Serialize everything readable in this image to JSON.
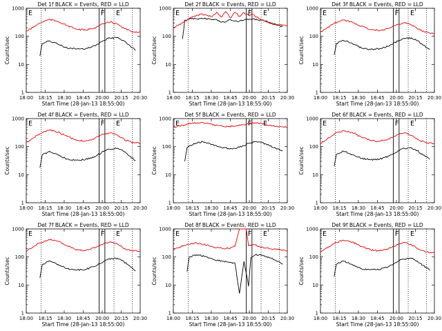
{
  "figure": {
    "title_suffix": "BLACK = Events, RED = LLD",
    "xlabel": "Start Time (28-Jan-13 18:55:00)",
    "ylabel": "Counts/sec",
    "x_ticks": [
      "18:00",
      "18:15",
      "18:30",
      "18:45",
      "20:00",
      "20:15",
      "20:30"
    ],
    "y_ticks": [
      "1",
      "10",
      "100",
      "1000"
    ],
    "flag_labels": [
      "E",
      "F",
      "E"
    ],
    "colors": {
      "events": "#000000",
      "lld": "#e00000"
    }
  },
  "chart_data": [
    {
      "type": "line",
      "detector": "Det 1f",
      "title": "Det 1f BLACK = Events, RED = LLD",
      "ylim": [
        1,
        1000
      ],
      "log_y": true,
      "series": [
        {
          "name": "Events",
          "color": "#000000",
          "x": [
            0.12,
            0.14,
            0.2,
            0.28,
            0.36,
            0.44,
            0.52,
            0.6,
            0.68,
            0.72,
            0.8,
            0.85,
            0.9,
            0.96
          ],
          "values": [
            20,
            55,
            70,
            52,
            38,
            35,
            36,
            46,
            70,
            85,
            90,
            72,
            50,
            32
          ]
        },
        {
          "name": "LLD",
          "color": "#e00000",
          "x": [
            0.0,
            0.06,
            0.12,
            0.2,
            0.28,
            0.36,
            0.44,
            0.52,
            0.6,
            0.68,
            0.74,
            0.8,
            0.86,
            0.92,
            1.0
          ],
          "values": [
            150,
            210,
            300,
            400,
            340,
            240,
            180,
            165,
            200,
            280,
            330,
            270,
            190,
            150,
            140
          ]
        }
      ]
    },
    {
      "type": "line",
      "detector": "Det 2f",
      "title": "Det 2f BLACK = Events, RED = LLD",
      "ylim": [
        1,
        1000
      ],
      "log_y": true,
      "series": [
        {
          "name": "Events",
          "color": "#000000",
          "x": [
            0.08,
            0.1,
            0.16,
            0.24,
            0.32,
            0.38,
            0.42,
            0.46,
            0.5,
            0.56,
            0.62,
            0.7,
            0.8,
            0.9,
            0.96
          ],
          "values": [
            80,
            380,
            420,
            430,
            410,
            400,
            320,
            330,
            400,
            340,
            380,
            420,
            350,
            260,
            220
          ]
        },
        {
          "name": "LLD",
          "color": "#e00000",
          "x": [
            0.0,
            0.08,
            0.16,
            0.24,
            0.3,
            0.34,
            0.38,
            0.42,
            0.46,
            0.5,
            0.54,
            0.58,
            0.62,
            0.66,
            0.7,
            0.76,
            0.84,
            0.9,
            1.0
          ],
          "values": [
            200,
            300,
            480,
            620,
            560,
            500,
            720,
            480,
            760,
            450,
            720,
            520,
            700,
            560,
            600,
            420,
            300,
            260,
            240
          ]
        }
      ]
    },
    {
      "type": "line",
      "detector": "Det 3f",
      "title": "Det 3f BLACK = Events, RED = LLD",
      "ylim": [
        1,
        1000
      ],
      "log_y": true,
      "series": [
        {
          "name": "Events",
          "color": "#000000",
          "x": [
            0.12,
            0.14,
            0.2,
            0.28,
            0.36,
            0.44,
            0.52,
            0.6,
            0.68,
            0.72,
            0.8,
            0.85,
            0.9,
            0.96
          ],
          "values": [
            22,
            55,
            72,
            55,
            38,
            34,
            36,
            45,
            68,
            82,
            88,
            70,
            48,
            34
          ]
        },
        {
          "name": "LLD",
          "color": "#e00000",
          "x": [
            0.0,
            0.06,
            0.12,
            0.2,
            0.28,
            0.36,
            0.44,
            0.52,
            0.6,
            0.68,
            0.74,
            0.8,
            0.86,
            0.92,
            1.0
          ],
          "values": [
            140,
            200,
            290,
            380,
            320,
            230,
            175,
            160,
            195,
            270,
            310,
            250,
            180,
            140,
            130
          ]
        }
      ]
    },
    {
      "type": "line",
      "detector": "Det 4f",
      "title": "Det 4f BLACK = Events, RED = LLD",
      "ylim": [
        1,
        1000
      ],
      "log_y": true,
      "series": [
        {
          "name": "Events",
          "color": "#000000",
          "x": [
            0.12,
            0.14,
            0.2,
            0.28,
            0.36,
            0.44,
            0.52,
            0.6,
            0.68,
            0.72,
            0.8,
            0.85,
            0.9,
            0.96
          ],
          "values": [
            18,
            50,
            68,
            50,
            36,
            33,
            35,
            44,
            68,
            82,
            88,
            70,
            48,
            32
          ]
        },
        {
          "name": "LLD",
          "color": "#e00000",
          "x": [
            0.0,
            0.06,
            0.12,
            0.2,
            0.28,
            0.36,
            0.44,
            0.52,
            0.6,
            0.68,
            0.74,
            0.8,
            0.86,
            0.92,
            1.0
          ],
          "values": [
            140,
            200,
            290,
            390,
            330,
            230,
            170,
            160,
            195,
            280,
            320,
            260,
            180,
            145,
            135
          ]
        }
      ]
    },
    {
      "type": "line",
      "detector": "Det 5f",
      "title": "Det 5f BLACK = Events, RED = LLD",
      "ylim": [
        1,
        1000
      ],
      "log_y": true,
      "series": [
        {
          "name": "Events",
          "color": "#000000",
          "x": [
            0.1,
            0.12,
            0.18,
            0.26,
            0.34,
            0.42,
            0.5,
            0.58,
            0.66,
            0.72,
            0.78,
            0.84,
            0.9,
            0.96
          ],
          "values": [
            30,
            90,
            130,
            150,
            120,
            95,
            85,
            95,
            130,
            150,
            140,
            110,
            85,
            70
          ]
        },
        {
          "name": "LLD",
          "color": "#e00000",
          "x": [
            0.0,
            0.08,
            0.16,
            0.24,
            0.32,
            0.4,
            0.48,
            0.56,
            0.64,
            0.7,
            0.76,
            0.82,
            0.9,
            1.0
          ],
          "values": [
            500,
            580,
            680,
            720,
            640,
            560,
            520,
            560,
            640,
            700,
            680,
            600,
            520,
            500
          ]
        }
      ]
    },
    {
      "type": "line",
      "detector": "Det 6f",
      "title": "Det 6f BLACK = Events, RED = LLD",
      "ylim": [
        1,
        1000
      ],
      "log_y": true,
      "series": [
        {
          "name": "Events",
          "color": "#000000",
          "x": [
            0.12,
            0.14,
            0.2,
            0.28,
            0.36,
            0.44,
            0.52,
            0.6,
            0.68,
            0.72,
            0.8,
            0.85,
            0.9,
            0.96
          ],
          "values": [
            20,
            52,
            70,
            52,
            38,
            34,
            36,
            46,
            70,
            84,
            90,
            72,
            50,
            36
          ]
        },
        {
          "name": "LLD",
          "color": "#e00000",
          "x": [
            0.0,
            0.06,
            0.12,
            0.2,
            0.28,
            0.36,
            0.44,
            0.52,
            0.6,
            0.68,
            0.74,
            0.8,
            0.86,
            0.92,
            1.0
          ],
          "values": [
            130,
            190,
            280,
            370,
            320,
            220,
            165,
            155,
            190,
            270,
            310,
            250,
            175,
            140,
            130
          ]
        }
      ]
    },
    {
      "type": "line",
      "detector": "Det 7f",
      "title": "Det 7f BLACK = Events, RED = LLD",
      "ylim": [
        1,
        1000
      ],
      "log_y": true,
      "series": [
        {
          "name": "Events",
          "color": "#000000",
          "x": [
            0.12,
            0.14,
            0.2,
            0.28,
            0.36,
            0.44,
            0.52,
            0.6,
            0.68,
            0.72,
            0.8,
            0.85,
            0.9,
            0.96
          ],
          "values": [
            18,
            52,
            72,
            54,
            38,
            34,
            36,
            46,
            70,
            84,
            90,
            72,
            50,
            32
          ]
        },
        {
          "name": "LLD",
          "color": "#e00000",
          "x": [
            0.0,
            0.06,
            0.12,
            0.2,
            0.28,
            0.36,
            0.44,
            0.52,
            0.6,
            0.68,
            0.74,
            0.8,
            0.86,
            0.92,
            1.0
          ],
          "values": [
            160,
            230,
            320,
            420,
            360,
            250,
            185,
            170,
            210,
            300,
            350,
            290,
            200,
            170,
            160
          ]
        }
      ]
    },
    {
      "type": "line",
      "detector": "Det 8f",
      "title": "Det 8f BLACK = Events, RED = LLD",
      "ylim": [
        1,
        1000
      ],
      "log_y": true,
      "series": [
        {
          "name": "Events",
          "color": "#000000",
          "x": [
            0.12,
            0.14,
            0.2,
            0.28,
            0.36,
            0.44,
            0.5,
            0.54,
            0.58,
            0.62,
            0.66,
            0.68,
            0.72,
            0.8,
            0.86,
            0.92,
            0.96
          ],
          "values": [
            30,
            100,
            120,
            105,
            80,
            70,
            65,
            60,
            5,
            70,
            9,
            95,
            120,
            110,
            90,
            70,
            55
          ]
        },
        {
          "name": "LLD",
          "color": "#e00000",
          "x": [
            0.0,
            0.06,
            0.12,
            0.2,
            0.28,
            0.36,
            0.44,
            0.5,
            0.54,
            0.58,
            0.62,
            0.64,
            0.66,
            0.7,
            0.76,
            0.82,
            0.88,
            0.94,
            1.0
          ],
          "values": [
            180,
            230,
            280,
            320,
            270,
            220,
            200,
            210,
            240,
            1000,
            1000,
            1000,
            250,
            280,
            230,
            210,
            190,
            180,
            170
          ]
        }
      ]
    },
    {
      "type": "line",
      "detector": "Det 9f",
      "title": "Det 9f BLACK = Events, RED = LLD",
      "ylim": [
        1,
        1000
      ],
      "log_y": true,
      "series": [
        {
          "name": "Events",
          "color": "#000000",
          "x": [
            0.12,
            0.14,
            0.2,
            0.28,
            0.36,
            0.44,
            0.52,
            0.6,
            0.68,
            0.72,
            0.8,
            0.85,
            0.9,
            0.96
          ],
          "values": [
            20,
            55,
            72,
            54,
            38,
            35,
            36,
            46,
            70,
            84,
            90,
            72,
            50,
            34
          ]
        },
        {
          "name": "LLD",
          "color": "#e00000",
          "x": [
            0.0,
            0.06,
            0.12,
            0.2,
            0.28,
            0.36,
            0.44,
            0.52,
            0.6,
            0.68,
            0.74,
            0.8,
            0.86,
            0.92,
            1.0
          ],
          "values": [
            150,
            210,
            300,
            400,
            340,
            240,
            180,
            165,
            200,
            280,
            330,
            270,
            190,
            150,
            140
          ]
        }
      ]
    }
  ]
}
